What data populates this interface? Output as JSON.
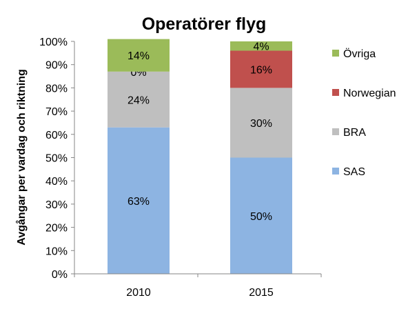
{
  "chart_data": {
    "type": "bar",
    "stacked": true,
    "title": "Operatörer flyg",
    "xlabel": "",
    "ylabel": "Avgångar per vardag och riktning",
    "categories": [
      "2010",
      "2015"
    ],
    "ylim": [
      0,
      100
    ],
    "yticks": [
      "0%",
      "10%",
      "20%",
      "30%",
      "40%",
      "50%",
      "60%",
      "70%",
      "80%",
      "90%",
      "100%"
    ],
    "grid": false,
    "legend_position": "right",
    "series": [
      {
        "name": "SAS",
        "color": "#8DB4E2",
        "values": [
          63,
          50
        ],
        "labels": [
          "63%",
          "50%"
        ]
      },
      {
        "name": "BRA",
        "color": "#BFBFBF",
        "values": [
          24,
          30
        ],
        "labels": [
          "24%",
          "30%"
        ]
      },
      {
        "name": "Norwegian",
        "color": "#C0504D",
        "values": [
          0,
          16
        ],
        "labels": [
          "0%",
          "16%"
        ]
      },
      {
        "name": "Övriga",
        "color": "#9BBB59",
        "values": [
          14,
          4
        ],
        "labels": [
          "14%",
          "4%"
        ]
      }
    ]
  }
}
